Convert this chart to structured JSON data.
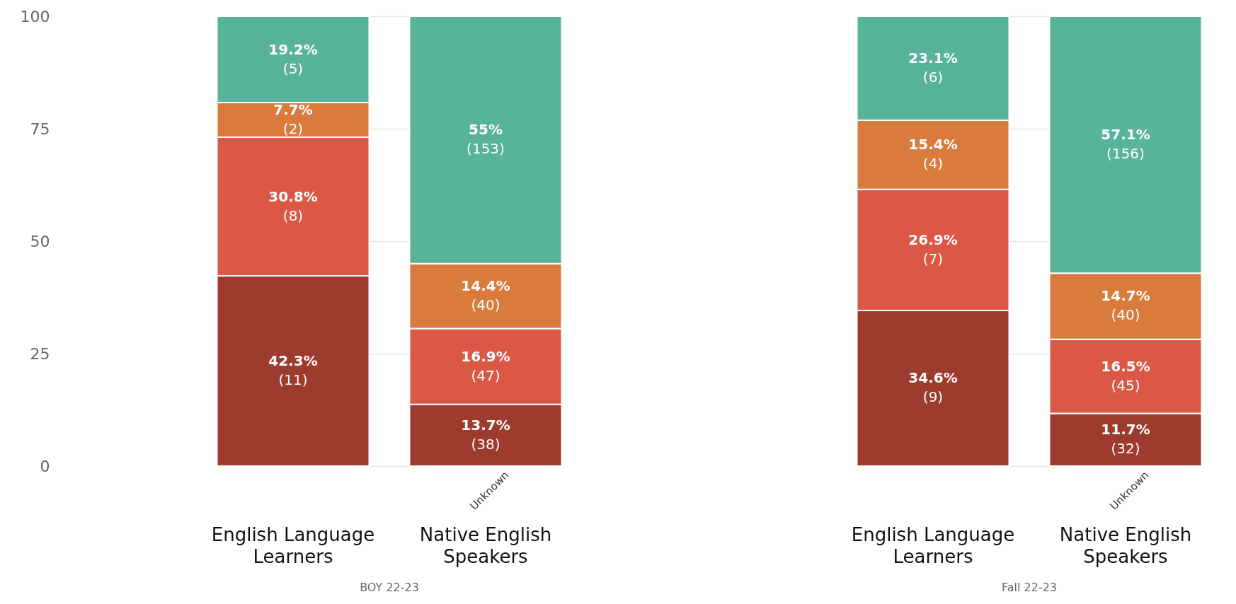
{
  "chart_data": [
    {
      "type": "bar",
      "stacked": true,
      "xlabel": "BOY 22-23",
      "categories": [
        "English Language Learners",
        "Native English Speakers"
      ],
      "series": [
        {
          "color": "#9e3b2f",
          "values": [
            42.3,
            13.7
          ],
          "value_labels": [
            "42.3%\n(11)",
            "13.7%\n(38)"
          ]
        },
        {
          "color": "#dc5846",
          "values": [
            30.8,
            16.9
          ],
          "value_labels": [
            "30.8%\n(8)",
            "16.9%\n(47)"
          ]
        },
        {
          "color": "#d97b3c",
          "values": [
            7.7,
            14.4
          ],
          "value_labels": [
            "7.7%\n(2)",
            "14.4%\n(40)"
          ]
        },
        {
          "color": "#58b39b",
          "values": [
            19.2,
            55
          ],
          "value_labels": [
            "19.2%\n(5)",
            "55%\n(153)"
          ]
        }
      ],
      "ylim": [
        0,
        100
      ],
      "yticks": [
        0,
        25,
        50,
        75,
        100
      ],
      "grid": "y",
      "annotations": [
        {
          "text": "Unknown",
          "x": "Native English Speakers",
          "y": 0
        }
      ]
    },
    {
      "type": "bar",
      "stacked": true,
      "xlabel": "Fall 22-23",
      "categories": [
        "English Language Learners",
        "Native English Speakers"
      ],
      "series": [
        {
          "color": "#9e3b2f",
          "values": [
            34.6,
            11.7
          ],
          "value_labels": [
            "34.6%\n(9)",
            "11.7%\n(32)"
          ]
        },
        {
          "color": "#dc5846",
          "values": [
            26.9,
            16.5
          ],
          "value_labels": [
            "26.9%\n(7)",
            "16.5%\n(45)"
          ]
        },
        {
          "color": "#d97b3c",
          "values": [
            15.4,
            14.7
          ],
          "value_labels": [
            "15.4%\n(4)",
            "14.7%\n(40)"
          ]
        },
        {
          "color": "#58b39b",
          "values": [
            23.1,
            57.1
          ],
          "value_labels": [
            "23.1%\n(6)",
            "57.1%\n(156)"
          ]
        }
      ],
      "ylim": [
        0,
        100
      ],
      "yticks": [
        0,
        25,
        50,
        75,
        100
      ],
      "grid": "y",
      "tick_labels": "x",
      "annotations": [
        {
          "text": "Unknown",
          "x": "Native English Speakers",
          "y": 0
        }
      ]
    }
  ]
}
